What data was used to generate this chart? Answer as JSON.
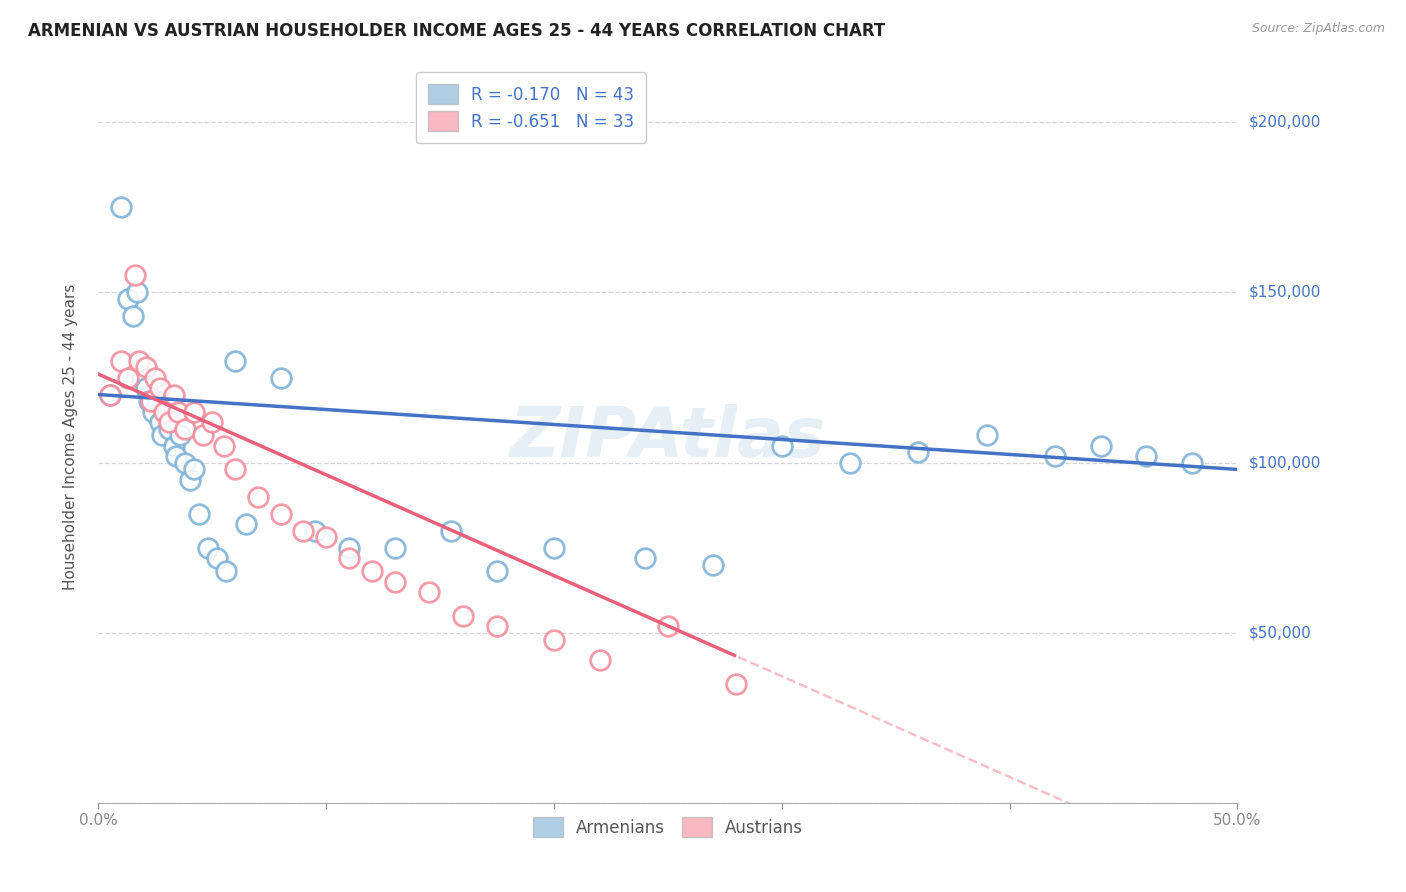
{
  "title": "ARMENIAN VS AUSTRIAN HOUSEHOLDER INCOME AGES 25 - 44 YEARS CORRELATION CHART",
  "source": "Source: ZipAtlas.com",
  "ylabel": "Householder Income Ages 25 - 44 years",
  "xlim": [
    0.0,
    0.5
  ],
  "ylim": [
    0,
    215000
  ],
  "yticks": [
    0,
    50000,
    100000,
    150000,
    200000
  ],
  "ytick_labels": [
    "",
    "$50,000",
    "$100,000",
    "$150,000",
    "$200,000"
  ],
  "watermark": "ZIPAtlas",
  "armenian_color": "#7bafd4",
  "austrian_color": "#f4899a",
  "armenian_line_color": "#4472c4",
  "austrian_line_color": "#e8607a",
  "armenian_R": -0.17,
  "austrian_R": -0.651,
  "armenian_N": 43,
  "austrian_N": 33,
  "armenian_x": [
    0.005,
    0.01,
    0.013,
    0.015,
    0.017,
    0.019,
    0.021,
    0.022,
    0.024,
    0.026,
    0.027,
    0.028,
    0.03,
    0.031,
    0.033,
    0.034,
    0.036,
    0.038,
    0.04,
    0.042,
    0.044,
    0.048,
    0.052,
    0.056,
    0.06,
    0.065,
    0.08,
    0.095,
    0.11,
    0.13,
    0.155,
    0.175,
    0.2,
    0.24,
    0.27,
    0.3,
    0.33,
    0.36,
    0.39,
    0.42,
    0.44,
    0.46,
    0.48
  ],
  "armenian_y": [
    120000,
    175000,
    148000,
    143000,
    150000,
    125000,
    122000,
    118000,
    115000,
    118000,
    112000,
    108000,
    115000,
    110000,
    105000,
    102000,
    108000,
    100000,
    95000,
    98000,
    85000,
    75000,
    72000,
    68000,
    130000,
    82000,
    125000,
    80000,
    75000,
    75000,
    80000,
    68000,
    75000,
    72000,
    70000,
    105000,
    100000,
    103000,
    108000,
    102000,
    105000,
    102000,
    100000
  ],
  "austrian_x": [
    0.005,
    0.01,
    0.013,
    0.016,
    0.018,
    0.021,
    0.023,
    0.025,
    0.027,
    0.029,
    0.031,
    0.033,
    0.035,
    0.038,
    0.042,
    0.046,
    0.05,
    0.055,
    0.06,
    0.07,
    0.08,
    0.09,
    0.1,
    0.11,
    0.12,
    0.13,
    0.145,
    0.16,
    0.175,
    0.2,
    0.22,
    0.25,
    0.28
  ],
  "austrian_y": [
    120000,
    130000,
    125000,
    155000,
    130000,
    128000,
    118000,
    125000,
    122000,
    115000,
    112000,
    120000,
    115000,
    110000,
    115000,
    108000,
    112000,
    105000,
    98000,
    90000,
    85000,
    80000,
    78000,
    72000,
    68000,
    65000,
    62000,
    55000,
    52000,
    48000,
    42000,
    52000,
    35000
  ]
}
